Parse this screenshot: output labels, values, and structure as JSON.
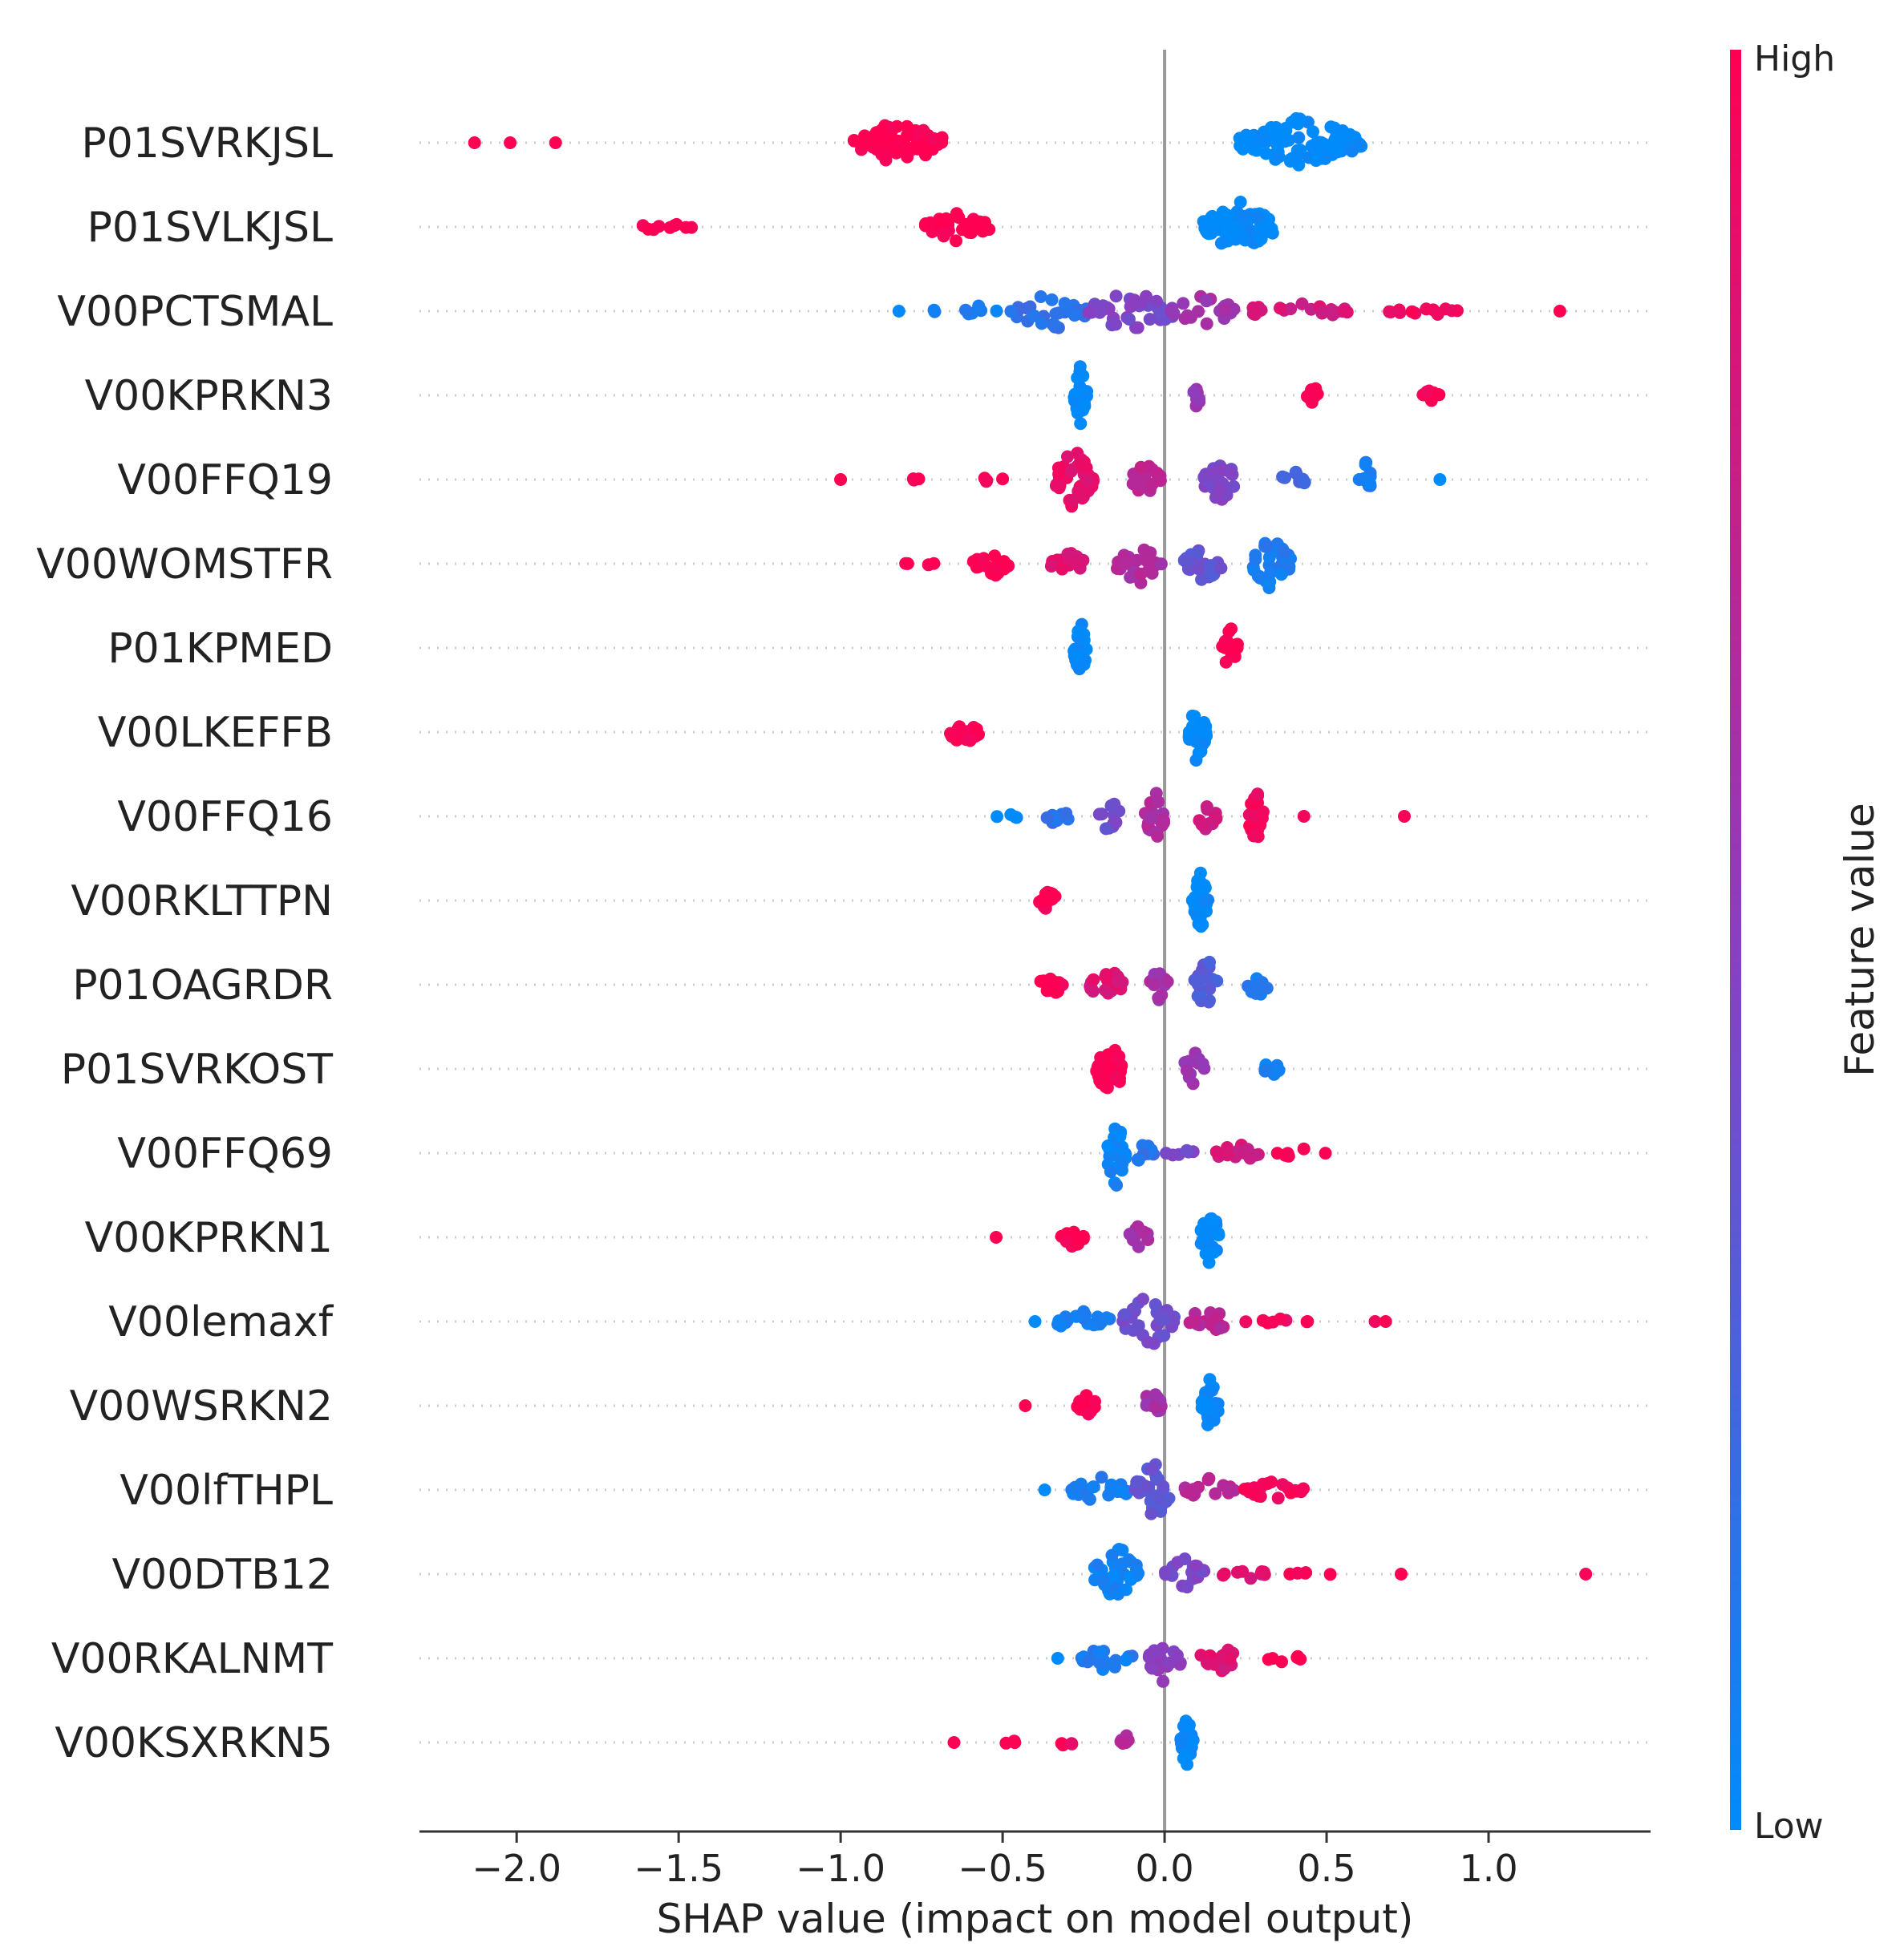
{
  "chart_data": {
    "type": "scatter",
    "subtype": "shap-beeswarm",
    "xlabel": "SHAP value (impact on model output)",
    "xlim": [
      -2.3,
      1.5
    ],
    "xticks": [
      -2.0,
      -1.5,
      -1.0,
      -0.5,
      0.0,
      0.5,
      1.0
    ],
    "xtick_labels": [
      "−2.0",
      "−1.5",
      "−1.0",
      "−0.5",
      "0.0",
      "0.5",
      "1.0"
    ],
    "colorbar": {
      "label": "Feature value",
      "high": "High",
      "low": "Low",
      "high_color": "#ff0052",
      "low_color": "#008bfb"
    },
    "features": [
      {
        "name": "P01SVRKJSL",
        "clusters": [
          {
            "x": -2.13,
            "w": 0,
            "n": 1,
            "h": 0,
            "c": 1.0
          },
          {
            "x": -2.02,
            "w": 0,
            "n": 1,
            "h": 0,
            "c": 1.0
          },
          {
            "x": -1.88,
            "w": 0,
            "n": 1,
            "h": 0,
            "c": 1.0
          },
          {
            "x": -0.82,
            "w": 0.28,
            "n": 70,
            "h": 0.55,
            "c": 1.0
          },
          {
            "x": 0.42,
            "w": 0.38,
            "n": 110,
            "h": 0.65,
            "c": 0.0
          }
        ]
      },
      {
        "name": "P01SVLKJSL",
        "clusters": [
          {
            "x": -1.55,
            "w": 0.18,
            "n": 9,
            "h": 0.1,
            "c": 1.0
          },
          {
            "x": -0.64,
            "w": 0.2,
            "n": 45,
            "h": 0.35,
            "c": 1.0
          },
          {
            "x": 0.23,
            "w": 0.22,
            "n": 80,
            "h": 0.65,
            "c": 0.0
          }
        ]
      },
      {
        "name": "V00PCTSMAL",
        "clusters": [
          {
            "x": -0.82,
            "w": 0,
            "n": 1,
            "h": 0,
            "c": 0.0
          },
          {
            "x": -0.6,
            "w": 0.25,
            "n": 8,
            "h": 0.15,
            "c": 0.08
          },
          {
            "x": -0.35,
            "w": 0.25,
            "n": 30,
            "h": 0.5,
            "c": 0.18
          },
          {
            "x": -0.1,
            "w": 0.28,
            "n": 40,
            "h": 0.55,
            "c": 0.45
          },
          {
            "x": 0.12,
            "w": 0.2,
            "n": 22,
            "h": 0.4,
            "c": 0.6
          },
          {
            "x": 0.4,
            "w": 0.35,
            "n": 20,
            "h": 0.2,
            "c": 0.8
          },
          {
            "x": 0.85,
            "w": 0.4,
            "n": 12,
            "h": 0.08,
            "c": 0.95
          },
          {
            "x": 1.22,
            "w": 0,
            "n": 1,
            "h": 0,
            "c": 1.0
          }
        ]
      },
      {
        "name": "V00KPRKN3",
        "clusters": [
          {
            "x": -0.26,
            "w": 0.04,
            "n": 30,
            "h": 0.7,
            "c": 0.0
          },
          {
            "x": 0.1,
            "w": 0.02,
            "n": 10,
            "h": 0.4,
            "c": 0.55
          },
          {
            "x": 0.46,
            "w": 0.04,
            "n": 10,
            "h": 0.25,
            "c": 1.0
          },
          {
            "x": 0.82,
            "w": 0.06,
            "n": 8,
            "h": 0.15,
            "c": 1.0
          }
        ]
      },
      {
        "name": "V00FFQ19",
        "clusters": [
          {
            "x": -1.0,
            "w": 0,
            "n": 1,
            "h": 0,
            "c": 1.0
          },
          {
            "x": -0.75,
            "w": 0.07,
            "n": 3,
            "h": 0.05,
            "c": 1.0
          },
          {
            "x": -0.52,
            "w": 0.08,
            "n": 4,
            "h": 0.15,
            "c": 1.0
          },
          {
            "x": -0.28,
            "w": 0.12,
            "n": 40,
            "h": 0.75,
            "c": 0.9
          },
          {
            "x": -0.06,
            "w": 0.1,
            "n": 22,
            "h": 0.4,
            "c": 0.7
          },
          {
            "x": 0.17,
            "w": 0.1,
            "n": 30,
            "h": 0.6,
            "c": 0.45
          },
          {
            "x": 0.4,
            "w": 0.08,
            "n": 10,
            "h": 0.3,
            "c": 0.25
          },
          {
            "x": 0.62,
            "w": 0.04,
            "n": 14,
            "h": 0.45,
            "c": 0.1
          },
          {
            "x": 0.85,
            "w": 0,
            "n": 1,
            "h": 0,
            "c": 0.0
          }
        ]
      },
      {
        "name": "V00WOMSTFR",
        "clusters": [
          {
            "x": -0.76,
            "w": 0.1,
            "n": 4,
            "h": 0.05,
            "c": 1.0
          },
          {
            "x": -0.53,
            "w": 0.12,
            "n": 22,
            "h": 0.35,
            "c": 1.0
          },
          {
            "x": -0.3,
            "w": 0.12,
            "n": 18,
            "h": 0.3,
            "c": 0.85
          },
          {
            "x": -0.08,
            "w": 0.14,
            "n": 28,
            "h": 0.5,
            "c": 0.65
          },
          {
            "x": 0.12,
            "w": 0.12,
            "n": 22,
            "h": 0.45,
            "c": 0.35
          },
          {
            "x": 0.33,
            "w": 0.12,
            "n": 35,
            "h": 0.7,
            "c": 0.1
          }
        ]
      },
      {
        "name": "P01KPMED",
        "clusters": [
          {
            "x": -0.26,
            "w": 0.04,
            "n": 30,
            "h": 0.75,
            "c": 0.0
          },
          {
            "x": 0.2,
            "w": 0.05,
            "n": 20,
            "h": 0.55,
            "c": 1.0
          }
        ]
      },
      {
        "name": "V00LKEFFB",
        "clusters": [
          {
            "x": -0.62,
            "w": 0.1,
            "n": 20,
            "h": 0.3,
            "c": 1.0
          },
          {
            "x": 0.1,
            "w": 0.06,
            "n": 30,
            "h": 0.75,
            "c": 0.0
          }
        ]
      },
      {
        "name": "V00FFQ16",
        "clusters": [
          {
            "x": -0.48,
            "w": 0.1,
            "n": 4,
            "h": 0.05,
            "c": 0.0
          },
          {
            "x": -0.33,
            "w": 0.07,
            "n": 10,
            "h": 0.3,
            "c": 0.15
          },
          {
            "x": -0.17,
            "w": 0.07,
            "n": 12,
            "h": 0.45,
            "c": 0.4
          },
          {
            "x": -0.03,
            "w": 0.06,
            "n": 20,
            "h": 0.65,
            "c": 0.65
          },
          {
            "x": 0.13,
            "w": 0.06,
            "n": 12,
            "h": 0.35,
            "c": 0.8
          },
          {
            "x": 0.28,
            "w": 0.05,
            "n": 22,
            "h": 0.7,
            "c": 0.95
          },
          {
            "x": 0.43,
            "w": 0,
            "n": 1,
            "h": 0,
            "c": 1.0
          },
          {
            "x": 0.74,
            "w": 0,
            "n": 1,
            "h": 0,
            "c": 1.0
          }
        ]
      },
      {
        "name": "V00RKLTTPN",
        "clusters": [
          {
            "x": -0.36,
            "w": 0.06,
            "n": 15,
            "h": 0.25,
            "c": 1.0
          },
          {
            "x": 0.11,
            "w": 0.05,
            "n": 30,
            "h": 0.75,
            "c": 0.0
          }
        ]
      },
      {
        "name": "P01OAGRDR",
        "clusters": [
          {
            "x": -0.35,
            "w": 0.08,
            "n": 14,
            "h": 0.3,
            "c": 1.0
          },
          {
            "x": -0.18,
            "w": 0.1,
            "n": 22,
            "h": 0.5,
            "c": 0.85
          },
          {
            "x": -0.02,
            "w": 0.07,
            "n": 14,
            "h": 0.4,
            "c": 0.6
          },
          {
            "x": 0.13,
            "w": 0.08,
            "n": 24,
            "h": 0.65,
            "c": 0.3
          },
          {
            "x": 0.29,
            "w": 0.07,
            "n": 10,
            "h": 0.35,
            "c": 0.1
          }
        ]
      },
      {
        "name": "P01SVRKOST",
        "clusters": [
          {
            "x": -0.17,
            "w": 0.08,
            "n": 40,
            "h": 0.8,
            "c": 1.0
          },
          {
            "x": 0.09,
            "w": 0.07,
            "n": 14,
            "h": 0.45,
            "c": 0.55
          },
          {
            "x": 0.33,
            "w": 0.05,
            "n": 10,
            "h": 0.35,
            "c": 0.05
          }
        ]
      },
      {
        "name": "V00FFQ69",
        "clusters": [
          {
            "x": -0.15,
            "w": 0.06,
            "n": 30,
            "h": 0.8,
            "c": 0.05
          },
          {
            "x": -0.06,
            "w": 0.06,
            "n": 10,
            "h": 0.45,
            "c": 0.15
          },
          {
            "x": 0.05,
            "w": 0.1,
            "n": 6,
            "h": 0.1,
            "c": 0.45
          },
          {
            "x": 0.22,
            "w": 0.14,
            "n": 14,
            "h": 0.25,
            "c": 0.8
          },
          {
            "x": 0.42,
            "w": 0.16,
            "n": 6,
            "h": 0.12,
            "c": 1.0
          }
        ]
      },
      {
        "name": "V00KPRKN1",
        "clusters": [
          {
            "x": -0.52,
            "w": 0,
            "n": 1,
            "h": 0,
            "c": 1.0
          },
          {
            "x": -0.28,
            "w": 0.08,
            "n": 14,
            "h": 0.25,
            "c": 1.0
          },
          {
            "x": -0.08,
            "w": 0.06,
            "n": 12,
            "h": 0.35,
            "c": 0.6
          },
          {
            "x": 0.14,
            "w": 0.06,
            "n": 30,
            "h": 0.75,
            "c": 0.0
          }
        ]
      },
      {
        "name": "V00lemaxf",
        "clusters": [
          {
            "x": -0.4,
            "w": 0,
            "n": 1,
            "h": 0,
            "c": 0.0
          },
          {
            "x": -0.25,
            "w": 0.18,
            "n": 20,
            "h": 0.3,
            "c": 0.1
          },
          {
            "x": -0.05,
            "w": 0.16,
            "n": 30,
            "h": 0.65,
            "c": 0.4
          },
          {
            "x": 0.13,
            "w": 0.14,
            "n": 18,
            "h": 0.35,
            "c": 0.7
          },
          {
            "x": 0.35,
            "w": 0.2,
            "n": 8,
            "h": 0.1,
            "c": 0.95
          },
          {
            "x": 0.67,
            "w": 0.08,
            "n": 2,
            "h": 0,
            "c": 1.0
          }
        ]
      },
      {
        "name": "V00WSRKN2",
        "clusters": [
          {
            "x": -0.43,
            "w": 0,
            "n": 1,
            "h": 0,
            "c": 1.0
          },
          {
            "x": -0.24,
            "w": 0.06,
            "n": 14,
            "h": 0.3,
            "c": 1.0
          },
          {
            "x": -0.04,
            "w": 0.06,
            "n": 14,
            "h": 0.4,
            "c": 0.6
          },
          {
            "x": 0.14,
            "w": 0.05,
            "n": 30,
            "h": 0.75,
            "c": 0.0
          }
        ]
      },
      {
        "name": "V00lfTHPL",
        "clusters": [
          {
            "x": -0.37,
            "w": 0,
            "n": 1,
            "h": 0,
            "c": 0.0
          },
          {
            "x": -0.2,
            "w": 0.18,
            "n": 22,
            "h": 0.35,
            "c": 0.1
          },
          {
            "x": -0.03,
            "w": 0.12,
            "n": 28,
            "h": 0.75,
            "c": 0.35
          },
          {
            "x": 0.14,
            "w": 0.16,
            "n": 16,
            "h": 0.3,
            "c": 0.7
          },
          {
            "x": 0.34,
            "w": 0.2,
            "n": 20,
            "h": 0.25,
            "c": 0.95
          }
        ]
      },
      {
        "name": "V00DTB12",
        "clusters": [
          {
            "x": -0.15,
            "w": 0.14,
            "n": 40,
            "h": 0.75,
            "c": 0.05
          },
          {
            "x": 0.06,
            "w": 0.14,
            "n": 20,
            "h": 0.4,
            "c": 0.45
          },
          {
            "x": 0.25,
            "w": 0.14,
            "n": 10,
            "h": 0.15,
            "c": 0.85
          },
          {
            "x": 0.45,
            "w": 0.14,
            "n": 5,
            "h": 0.05,
            "c": 1.0
          },
          {
            "x": 0.73,
            "w": 0,
            "n": 1,
            "h": 0,
            "c": 1.0
          },
          {
            "x": 1.3,
            "w": 0,
            "n": 1,
            "h": 0,
            "c": 1.0
          }
        ]
      },
      {
        "name": "V00RKALNMT",
        "clusters": [
          {
            "x": -0.33,
            "w": 0,
            "n": 1,
            "h": 0,
            "c": 0.0
          },
          {
            "x": -0.18,
            "w": 0.16,
            "n": 20,
            "h": 0.35,
            "c": 0.1
          },
          {
            "x": 0.0,
            "w": 0.1,
            "n": 22,
            "h": 0.65,
            "c": 0.5
          },
          {
            "x": 0.17,
            "w": 0.12,
            "n": 16,
            "h": 0.35,
            "c": 0.85
          },
          {
            "x": 0.37,
            "w": 0.12,
            "n": 6,
            "h": 0.1,
            "c": 1.0
          }
        ]
      },
      {
        "name": "V00KSXRKN5",
        "clusters": [
          {
            "x": -0.65,
            "w": 0,
            "n": 1,
            "h": 0,
            "c": 1.0
          },
          {
            "x": -0.48,
            "w": 0.04,
            "n": 4,
            "h": 0.1,
            "c": 1.0
          },
          {
            "x": -0.3,
            "w": 0.04,
            "n": 4,
            "h": 0.15,
            "c": 0.95
          },
          {
            "x": -0.12,
            "w": 0.04,
            "n": 6,
            "h": 0.2,
            "c": 0.65
          },
          {
            "x": 0.07,
            "w": 0.04,
            "n": 26,
            "h": 0.75,
            "c": 0.0
          }
        ]
      }
    ]
  }
}
